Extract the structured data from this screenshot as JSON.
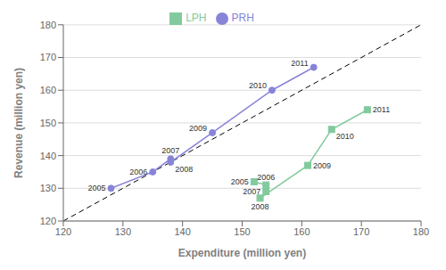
{
  "chart_data": {
    "type": "line",
    "xlabel": "Expenditure (million yen)",
    "ylabel": "Revenue (million yen)",
    "xlim": [
      120,
      180
    ],
    "ylim": [
      120,
      180
    ],
    "xticks": [
      120,
      130,
      140,
      150,
      160,
      170,
      180
    ],
    "yticks": [
      120,
      130,
      140,
      150,
      160,
      170,
      180
    ],
    "grid": "y",
    "legend": "top",
    "reference_line": {
      "x": [
        120,
        180
      ],
      "y": [
        120,
        180
      ],
      "line_style": "dashed",
      "color": "#000000"
    },
    "series": [
      {
        "name": "PRH",
        "x": [
          128,
          135,
          138,
          138,
          145,
          155,
          162
        ],
        "values": [
          130,
          135,
          139,
          138,
          147,
          160,
          167
        ],
        "point_labels": [
          "2005",
          "2006",
          "2007",
          "2008",
          "2009",
          "2010",
          "2011"
        ],
        "marker": "circle",
        "color": "#8884d8"
      },
      {
        "name": "LPH",
        "x": [
          152,
          154,
          154,
          153,
          161,
          165,
          171
        ],
        "values": [
          132,
          131,
          129,
          127,
          137,
          148,
          154
        ],
        "point_labels": [
          "2005",
          "2006",
          "2007",
          "2008",
          "2009",
          "2010",
          "2011"
        ],
        "marker": "square",
        "color": "#82ca9d"
      }
    ]
  }
}
